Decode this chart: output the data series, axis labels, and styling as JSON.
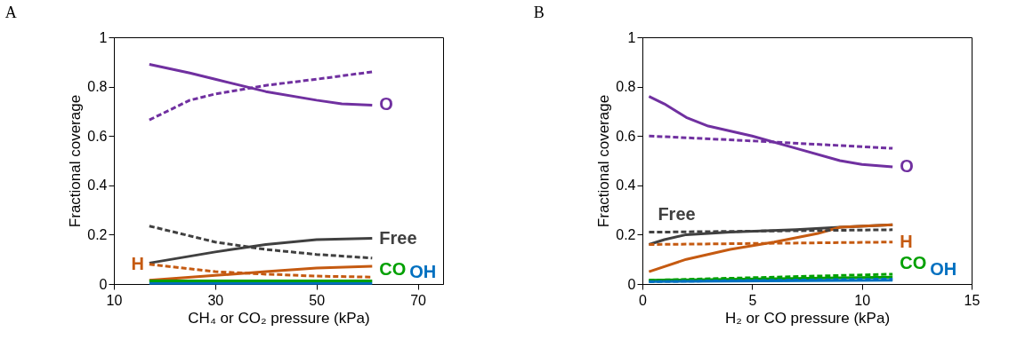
{
  "chart_data": [
    {
      "type": "line",
      "title": "A",
      "xlabel": "CH₄ or CO₂ pressure (kPa)",
      "ylabel": "Fractional coverage",
      "xlim": [
        10,
        75
      ],
      "xticks": [
        10,
        30,
        50,
        70
      ],
      "ylim": [
        0,
        1
      ],
      "yticks": [
        0,
        0.2,
        0.4,
        0.6,
        0.8,
        1
      ],
      "grid": false,
      "marker": "none",
      "series": [
        {
          "color": "#7030a0",
          "line_style": "solid",
          "x": [
            17,
            25,
            30,
            40,
            50,
            55,
            61
          ],
          "values": [
            0.89,
            0.855,
            0.83,
            0.78,
            0.745,
            0.73,
            0.725
          ]
        },
        {
          "color": "#404040",
          "line_style": "solid",
          "x": [
            17,
            30,
            40,
            50,
            61
          ],
          "values": [
            0.085,
            0.13,
            0.16,
            0.18,
            0.185
          ]
        },
        {
          "color": "#c55a11",
          "line_style": "solid",
          "x": [
            17,
            30,
            40,
            50,
            61
          ],
          "values": [
            0.015,
            0.035,
            0.05,
            0.065,
            0.072
          ]
        },
        {
          "color": "#0070c0",
          "line_style": "solid",
          "x": [
            17,
            61
          ],
          "values": [
            0.003,
            0.003
          ]
        },
        {
          "color": "#00a000",
          "line_style": "solid",
          "x": [
            17,
            61
          ],
          "values": [
            0.013,
            0.013
          ]
        },
        {
          "color": "#7030a0",
          "line_style": "dashed",
          "x": [
            17,
            25,
            30,
            40,
            50,
            61
          ],
          "values": [
            0.665,
            0.745,
            0.77,
            0.805,
            0.83,
            0.86
          ]
        },
        {
          "color": "#404040",
          "line_style": "dashed",
          "x": [
            17,
            30,
            40,
            50,
            61
          ],
          "values": [
            0.235,
            0.17,
            0.14,
            0.12,
            0.105
          ]
        },
        {
          "color": "#c55a11",
          "line_style": "dashed",
          "x": [
            17,
            30,
            40,
            50,
            61
          ],
          "values": [
            0.08,
            0.05,
            0.04,
            0.032,
            0.028
          ]
        }
      ],
      "annotations": [
        {
          "text": "O",
          "x": 61,
          "y": 0.725
        },
        {
          "text": "Free",
          "x": 61,
          "y": 0.185
        },
        {
          "text": "H",
          "x": 17,
          "y": 0.08
        },
        {
          "text": "CO",
          "x": 61,
          "y": 0.013
        },
        {
          "text": "OH",
          "x": 61,
          "y": 0.003
        }
      ]
    },
    {
      "type": "line",
      "title": "B",
      "xlabel": "H₂ or CO pressure (kPa)",
      "ylabel": "Fractional coverage",
      "xlim": [
        0,
        15
      ],
      "xticks": [
        0,
        5,
        10,
        15
      ],
      "ylim": [
        0,
        1
      ],
      "yticks": [
        0,
        0.2,
        0.4,
        0.6,
        0.8,
        1
      ],
      "grid": false,
      "marker": "none",
      "series": [
        {
          "color": "#7030a0",
          "line_style": "solid",
          "x": [
            0.3,
            1,
            2,
            3,
            5,
            7,
            9,
            10,
            11.4
          ],
          "values": [
            0.76,
            0.73,
            0.675,
            0.64,
            0.6,
            0.55,
            0.5,
            0.485,
            0.475
          ]
        },
        {
          "color": "#404040",
          "line_style": "solid",
          "x": [
            0.3,
            1,
            2,
            4,
            7,
            9,
            11.4
          ],
          "values": [
            0.16,
            0.18,
            0.2,
            0.21,
            0.22,
            0.23,
            0.24
          ]
        },
        {
          "color": "#c55a11",
          "line_style": "solid",
          "x": [
            0.3,
            2,
            4,
            6,
            8,
            9,
            11.4
          ],
          "values": [
            0.05,
            0.1,
            0.14,
            0.17,
            0.205,
            0.23,
            0.24
          ]
        },
        {
          "color": "#00a000",
          "line_style": "solid",
          "x": [
            0.3,
            11.4
          ],
          "values": [
            0.015,
            0.028
          ]
        },
        {
          "color": "#0070c0",
          "line_style": "solid",
          "x": [
            0.3,
            11.4
          ],
          "values": [
            0.01,
            0.015
          ]
        },
        {
          "color": "#7030a0",
          "line_style": "dashed",
          "x": [
            0.3,
            5,
            11.4
          ],
          "values": [
            0.6,
            0.58,
            0.55
          ]
        },
        {
          "color": "#404040",
          "line_style": "dashed",
          "x": [
            0.3,
            6,
            11.4
          ],
          "values": [
            0.21,
            0.215,
            0.22
          ]
        },
        {
          "color": "#c55a11",
          "line_style": "dashed",
          "x": [
            0.3,
            11.4
          ],
          "values": [
            0.16,
            0.17
          ]
        },
        {
          "color": "#00a000",
          "line_style": "dashed",
          "x": [
            0.3,
            11.4
          ],
          "values": [
            0.015,
            0.04
          ]
        },
        {
          "color": "#0070c0",
          "line_style": "dashed",
          "x": [
            0.3,
            11.4
          ],
          "values": [
            0.01,
            0.02
          ]
        }
      ],
      "annotations": [
        {
          "text": "O",
          "x": 11.4,
          "y": 0.475
        },
        {
          "text": "Free",
          "x": 0.3,
          "y": 0.21
        },
        {
          "text": "H",
          "x": 11.4,
          "y": 0.17
        },
        {
          "text": "CO",
          "x": 11.4,
          "y": 0.04
        },
        {
          "text": "OH",
          "x": 11.4,
          "y": 0.015
        }
      ]
    }
  ]
}
